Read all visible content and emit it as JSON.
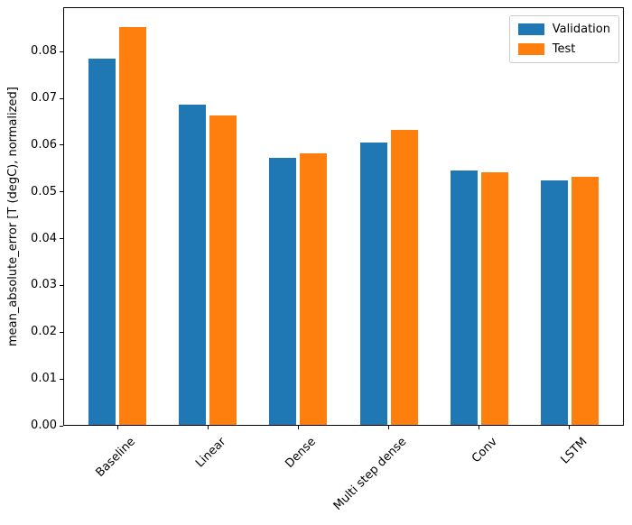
{
  "figure": {
    "background": "#ffffff",
    "spine_color": "#000000",
    "legend_border_color": "#cccccc"
  },
  "chart_data": {
    "type": "bar",
    "title": "",
    "xlabel": "",
    "ylabel": "mean_absolute_error [T (degC), normalized]",
    "categories": [
      "Baseline",
      "Linear",
      "Dense",
      "Multi step dense",
      "Conv",
      "LSTM"
    ],
    "series": [
      {
        "name": "Validation",
        "color": "#1f77b4",
        "offset": -0.17,
        "values": [
          0.0785,
          0.0686,
          0.0572,
          0.0606,
          0.0545,
          0.0524
        ]
      },
      {
        "name": "Test",
        "color": "#ff7f0e",
        "offset": 0.17,
        "values": [
          0.0852,
          0.0663,
          0.0583,
          0.0632,
          0.0542,
          0.0533
        ]
      }
    ],
    "bar_width": 0.3,
    "xlim": [
      -0.6,
      5.6
    ],
    "ylim": [
      0,
      0.0895
    ],
    "ytick_values": [
      0,
      0.01,
      0.02,
      0.03,
      0.04,
      0.05,
      0.06,
      0.07,
      0.08
    ],
    "ytick_labels": [
      "0.00",
      "0.01",
      "0.02",
      "0.03",
      "0.04",
      "0.05",
      "0.06",
      "0.07",
      "0.08"
    ],
    "xtick_rotation_deg": 45,
    "grid": false,
    "legend_position": "upper right"
  }
}
